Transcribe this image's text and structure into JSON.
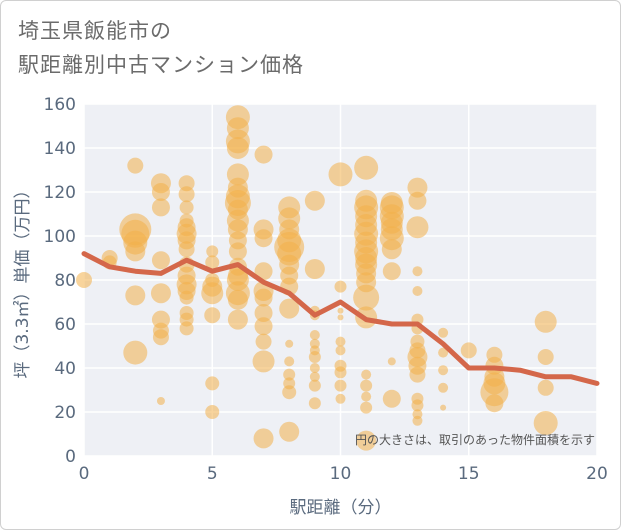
{
  "header": {
    "title_line1": "埼玉県飯能市の",
    "title_line2": "駅距離別中古マンション価格"
  },
  "chart_data": {
    "type": "scatter",
    "title": "埼玉県飯能市の駅距離別中古マンション価格",
    "xlabel": "駅距離（分）",
    "ylabel": "坪（3.3㎡）単価（万円）",
    "xlim": [
      0,
      20
    ],
    "ylim": [
      0,
      160
    ],
    "xticks": [
      0,
      5,
      10,
      15,
      20
    ],
    "yticks": [
      0,
      20,
      40,
      60,
      80,
      100,
      120,
      140,
      160
    ],
    "grid": true,
    "note": "円の大きさは、取引のあった物件面積を示す",
    "colors": {
      "bubble": "#f2b14a",
      "line": "#d4674a",
      "plot_bg": "#eef0f5",
      "grid": "#ffffff"
    },
    "points": [
      {
        "x": 0,
        "y": 80,
        "size": 8
      },
      {
        "x": 1,
        "y": 90,
        "size": 8
      },
      {
        "x": 1,
        "y": 88,
        "size": 7
      },
      {
        "x": 2,
        "y": 132,
        "size": 8
      },
      {
        "x": 2,
        "y": 103,
        "size": 16
      },
      {
        "x": 2,
        "y": 101,
        "size": 14
      },
      {
        "x": 2,
        "y": 97,
        "size": 12
      },
      {
        "x": 2,
        "y": 93,
        "size": 10
      },
      {
        "x": 2,
        "y": 73,
        "size": 10
      },
      {
        "x": 2,
        "y": 47,
        "size": 12
      },
      {
        "x": 3,
        "y": 124,
        "size": 10
      },
      {
        "x": 3,
        "y": 120,
        "size": 9
      },
      {
        "x": 3,
        "y": 113,
        "size": 9
      },
      {
        "x": 3,
        "y": 89,
        "size": 9
      },
      {
        "x": 3,
        "y": 74,
        "size": 10
      },
      {
        "x": 3,
        "y": 62,
        "size": 9
      },
      {
        "x": 3,
        "y": 57,
        "size": 8
      },
      {
        "x": 3,
        "y": 54,
        "size": 8
      },
      {
        "x": 3,
        "y": 25,
        "size": 4
      },
      {
        "x": 4,
        "y": 124,
        "size": 8
      },
      {
        "x": 4,
        "y": 119,
        "size": 8
      },
      {
        "x": 4,
        "y": 113,
        "size": 7
      },
      {
        "x": 4,
        "y": 107,
        "size": 7
      },
      {
        "x": 4,
        "y": 104,
        "size": 9
      },
      {
        "x": 4,
        "y": 101,
        "size": 10
      },
      {
        "x": 4,
        "y": 98,
        "size": 9
      },
      {
        "x": 4,
        "y": 94,
        "size": 8
      },
      {
        "x": 4,
        "y": 87,
        "size": 8
      },
      {
        "x": 4,
        "y": 82,
        "size": 9
      },
      {
        "x": 4,
        "y": 78,
        "size": 10
      },
      {
        "x": 4,
        "y": 75,
        "size": 9
      },
      {
        "x": 4,
        "y": 72,
        "size": 7
      },
      {
        "x": 4,
        "y": 65,
        "size": 7
      },
      {
        "x": 4,
        "y": 62,
        "size": 7
      },
      {
        "x": 4,
        "y": 58,
        "size": 7
      },
      {
        "x": 5,
        "y": 93,
        "size": 6
      },
      {
        "x": 5,
        "y": 88,
        "size": 7
      },
      {
        "x": 5,
        "y": 80,
        "size": 7
      },
      {
        "x": 5,
        "y": 77,
        "size": 10
      },
      {
        "x": 5,
        "y": 74,
        "size": 11
      },
      {
        "x": 5,
        "y": 64,
        "size": 8
      },
      {
        "x": 5,
        "y": 33,
        "size": 7
      },
      {
        "x": 5,
        "y": 20,
        "size": 7
      },
      {
        "x": 6,
        "y": 154,
        "size": 12
      },
      {
        "x": 6,
        "y": 149,
        "size": 11
      },
      {
        "x": 6,
        "y": 143,
        "size": 12
      },
      {
        "x": 6,
        "y": 140,
        "size": 11
      },
      {
        "x": 6,
        "y": 128,
        "size": 11
      },
      {
        "x": 6,
        "y": 122,
        "size": 10
      },
      {
        "x": 6,
        "y": 118,
        "size": 12
      },
      {
        "x": 6,
        "y": 115,
        "size": 13
      },
      {
        "x": 6,
        "y": 112,
        "size": 10
      },
      {
        "x": 6,
        "y": 107,
        "size": 11
      },
      {
        "x": 6,
        "y": 103,
        "size": 10
      },
      {
        "x": 6,
        "y": 98,
        "size": 9
      },
      {
        "x": 6,
        "y": 93,
        "size": 9
      },
      {
        "x": 6,
        "y": 86,
        "size": 9
      },
      {
        "x": 6,
        "y": 82,
        "size": 10
      },
      {
        "x": 6,
        "y": 80,
        "size": 11
      },
      {
        "x": 6,
        "y": 74,
        "size": 12
      },
      {
        "x": 6,
        "y": 71,
        "size": 10
      },
      {
        "x": 6,
        "y": 62,
        "size": 10
      },
      {
        "x": 7,
        "y": 137,
        "size": 9
      },
      {
        "x": 7,
        "y": 103,
        "size": 10
      },
      {
        "x": 7,
        "y": 99,
        "size": 9
      },
      {
        "x": 7,
        "y": 84,
        "size": 9
      },
      {
        "x": 7,
        "y": 75,
        "size": 10
      },
      {
        "x": 7,
        "y": 72,
        "size": 9
      },
      {
        "x": 7,
        "y": 65,
        "size": 9
      },
      {
        "x": 7,
        "y": 59,
        "size": 9
      },
      {
        "x": 7,
        "y": 52,
        "size": 8
      },
      {
        "x": 7,
        "y": 43,
        "size": 11
      },
      {
        "x": 7,
        "y": 8,
        "size": 10
      },
      {
        "x": 8,
        "y": 113,
        "size": 11
      },
      {
        "x": 8,
        "y": 108,
        "size": 11
      },
      {
        "x": 8,
        "y": 103,
        "size": 10
      },
      {
        "x": 8,
        "y": 98,
        "size": 12
      },
      {
        "x": 8,
        "y": 95,
        "size": 15
      },
      {
        "x": 8,
        "y": 92,
        "size": 12
      },
      {
        "x": 8,
        "y": 87,
        "size": 10
      },
      {
        "x": 8,
        "y": 82,
        "size": 9
      },
      {
        "x": 8,
        "y": 77,
        "size": 9
      },
      {
        "x": 8,
        "y": 67,
        "size": 10
      },
      {
        "x": 8,
        "y": 51,
        "size": 4
      },
      {
        "x": 8,
        "y": 43,
        "size": 5
      },
      {
        "x": 8,
        "y": 37,
        "size": 6
      },
      {
        "x": 8,
        "y": 33,
        "size": 6
      },
      {
        "x": 8,
        "y": 29,
        "size": 7
      },
      {
        "x": 8,
        "y": 11,
        "size": 10
      },
      {
        "x": 9,
        "y": 116,
        "size": 10
      },
      {
        "x": 9,
        "y": 85,
        "size": 10
      },
      {
        "x": 9,
        "y": 66,
        "size": 5
      },
      {
        "x": 9,
        "y": 64,
        "size": 5
      },
      {
        "x": 9,
        "y": 55,
        "size": 5
      },
      {
        "x": 9,
        "y": 51,
        "size": 5
      },
      {
        "x": 9,
        "y": 48,
        "size": 5
      },
      {
        "x": 9,
        "y": 45,
        "size": 6
      },
      {
        "x": 9,
        "y": 40,
        "size": 5
      },
      {
        "x": 9,
        "y": 36,
        "size": 5
      },
      {
        "x": 9,
        "y": 32,
        "size": 6
      },
      {
        "x": 9,
        "y": 24,
        "size": 6
      },
      {
        "x": 10,
        "y": 128,
        "size": 12
      },
      {
        "x": 10,
        "y": 77,
        "size": 6
      },
      {
        "x": 10,
        "y": 66,
        "size": 3
      },
      {
        "x": 10,
        "y": 63,
        "size": 3
      },
      {
        "x": 10,
        "y": 52,
        "size": 5
      },
      {
        "x": 10,
        "y": 48,
        "size": 5
      },
      {
        "x": 10,
        "y": 41,
        "size": 6
      },
      {
        "x": 10,
        "y": 38,
        "size": 6
      },
      {
        "x": 10,
        "y": 32,
        "size": 6
      },
      {
        "x": 10,
        "y": 26,
        "size": 5
      },
      {
        "x": 11,
        "y": 131,
        "size": 12
      },
      {
        "x": 11,
        "y": 116,
        "size": 11
      },
      {
        "x": 11,
        "y": 113,
        "size": 12
      },
      {
        "x": 11,
        "y": 109,
        "size": 11
      },
      {
        "x": 11,
        "y": 105,
        "size": 11
      },
      {
        "x": 11,
        "y": 101,
        "size": 12
      },
      {
        "x": 11,
        "y": 97,
        "size": 11
      },
      {
        "x": 11,
        "y": 93,
        "size": 12
      },
      {
        "x": 11,
        "y": 90,
        "size": 11
      },
      {
        "x": 11,
        "y": 87,
        "size": 11
      },
      {
        "x": 11,
        "y": 83,
        "size": 10
      },
      {
        "x": 11,
        "y": 79,
        "size": 10
      },
      {
        "x": 11,
        "y": 72,
        "size": 13
      },
      {
        "x": 11,
        "y": 63,
        "size": 11
      },
      {
        "x": 11,
        "y": 37,
        "size": 5
      },
      {
        "x": 11,
        "y": 32,
        "size": 6
      },
      {
        "x": 11,
        "y": 27,
        "size": 5
      },
      {
        "x": 11,
        "y": 22,
        "size": 6
      },
      {
        "x": 11,
        "y": 7,
        "size": 10
      },
      {
        "x": 12,
        "y": 115,
        "size": 11
      },
      {
        "x": 12,
        "y": 113,
        "size": 12
      },
      {
        "x": 12,
        "y": 109,
        "size": 12
      },
      {
        "x": 12,
        "y": 106,
        "size": 11
      },
      {
        "x": 12,
        "y": 103,
        "size": 11
      },
      {
        "x": 12,
        "y": 99,
        "size": 12
      },
      {
        "x": 12,
        "y": 94,
        "size": 10
      },
      {
        "x": 12,
        "y": 84,
        "size": 9
      },
      {
        "x": 12,
        "y": 43,
        "size": 4
      },
      {
        "x": 12,
        "y": 26,
        "size": 9
      },
      {
        "x": 13,
        "y": 122,
        "size": 10
      },
      {
        "x": 13,
        "y": 116,
        "size": 9
      },
      {
        "x": 13,
        "y": 104,
        "size": 11
      },
      {
        "x": 13,
        "y": 84,
        "size": 5
      },
      {
        "x": 13,
        "y": 75,
        "size": 5
      },
      {
        "x": 13,
        "y": 62,
        "size": 6
      },
      {
        "x": 13,
        "y": 58,
        "size": 6
      },
      {
        "x": 13,
        "y": 52,
        "size": 7
      },
      {
        "x": 13,
        "y": 48,
        "size": 8
      },
      {
        "x": 13,
        "y": 45,
        "size": 10
      },
      {
        "x": 13,
        "y": 41,
        "size": 9
      },
      {
        "x": 13,
        "y": 37,
        "size": 8
      },
      {
        "x": 13,
        "y": 26,
        "size": 6
      },
      {
        "x": 13,
        "y": 23,
        "size": 6
      },
      {
        "x": 13,
        "y": 19,
        "size": 5
      },
      {
        "x": 13,
        "y": 16,
        "size": 5
      },
      {
        "x": 14,
        "y": 56,
        "size": 5
      },
      {
        "x": 14,
        "y": 47,
        "size": 5
      },
      {
        "x": 14,
        "y": 39,
        "size": 5
      },
      {
        "x": 14,
        "y": 31,
        "size": 5
      },
      {
        "x": 14,
        "y": 22,
        "size": 3
      },
      {
        "x": 15,
        "y": 48,
        "size": 8
      },
      {
        "x": 16,
        "y": 46,
        "size": 8
      },
      {
        "x": 16,
        "y": 41,
        "size": 9
      },
      {
        "x": 16,
        "y": 36,
        "size": 10
      },
      {
        "x": 16,
        "y": 33,
        "size": 11
      },
      {
        "x": 16,
        "y": 29,
        "size": 14
      },
      {
        "x": 16,
        "y": 24,
        "size": 9
      },
      {
        "x": 18,
        "y": 61,
        "size": 11
      },
      {
        "x": 18,
        "y": 45,
        "size": 8
      },
      {
        "x": 18,
        "y": 31,
        "size": 8
      },
      {
        "x": 18,
        "y": 15,
        "size": 12
      }
    ],
    "series": [
      {
        "type": "line",
        "x": [
          0,
          1,
          2,
          3,
          4,
          5,
          6,
          7,
          8,
          9,
          10,
          11,
          12,
          13,
          14,
          15,
          16,
          17,
          18,
          19,
          20
        ],
        "values": [
          92,
          86,
          84,
          83,
          89,
          84,
          87,
          79,
          74,
          64,
          70,
          62,
          60,
          60,
          51,
          40,
          40,
          39,
          36,
          36,
          33
        ]
      }
    ]
  }
}
